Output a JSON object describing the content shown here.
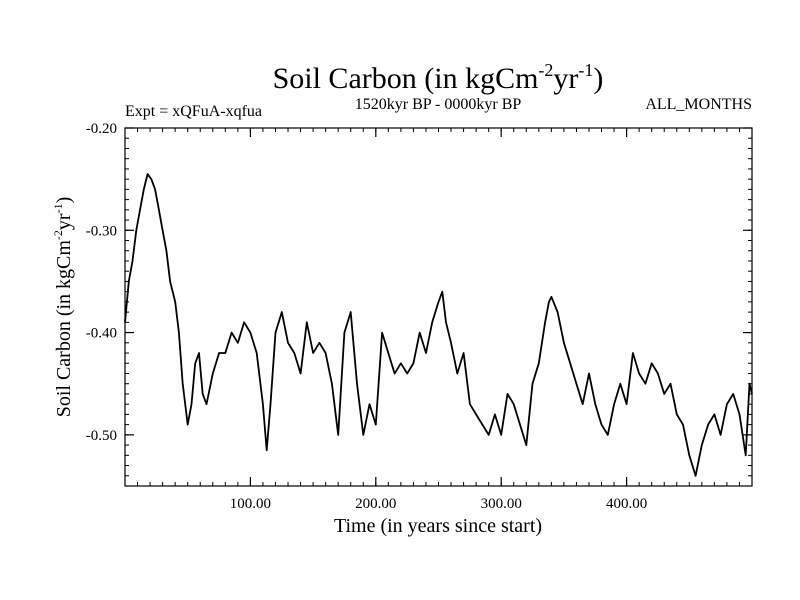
{
  "chart_data": {
    "type": "line",
    "title_main": "Soil Carbon (in kgCm",
    "title_sup1": "-2",
    "title_mid": "yr",
    "title_sup2": "-1",
    "title_close": ")",
    "subtitle_left": "Expt = xQFuA-xqfua",
    "subtitle_center": "1520kyr BP - 0000kyr BP",
    "subtitle_right": "ALL_MONTHS",
    "xlabel": "Time (in years since start)",
    "ylabel_main": "Soil Carbon (in kgCm",
    "ylabel_sup1": "-2",
    "ylabel_mid": "yr",
    "ylabel_sup2": "-1",
    "ylabel_close": ")",
    "xlim": [
      0,
      500
    ],
    "ylim": [
      -0.55,
      -0.2
    ],
    "xticks": [
      {
        "value": 100,
        "label": "100.00"
      },
      {
        "value": 200,
        "label": "200.00"
      },
      {
        "value": 300,
        "label": "300.00"
      },
      {
        "value": 400,
        "label": "400.00"
      }
    ],
    "yticks": [
      {
        "value": -0.2,
        "label": "-0.20"
      },
      {
        "value": -0.3,
        "label": "-0.30"
      },
      {
        "value": -0.4,
        "label": "-0.40"
      },
      {
        "value": -0.5,
        "label": "-0.50"
      }
    ],
    "line_color": "#000000",
    "series": [
      {
        "name": "Soil Carbon",
        "x": [
          0,
          3,
          6,
          9,
          12,
          15,
          18,
          21,
          24,
          27,
          30,
          33,
          36,
          40,
          43,
          46,
          50,
          53,
          56,
          59,
          62,
          65,
          70,
          75,
          80,
          85,
          90,
          95,
          100,
          105,
          110,
          113,
          116,
          120,
          125,
          130,
          135,
          140,
          145,
          150,
          155,
          160,
          165,
          170,
          175,
          180,
          185,
          190,
          195,
          200,
          205,
          210,
          215,
          220,
          225,
          230,
          235,
          240,
          245,
          250,
          253,
          256,
          260,
          265,
          270,
          275,
          280,
          285,
          290,
          295,
          300,
          305,
          310,
          315,
          320,
          325,
          330,
          335,
          338,
          340,
          345,
          350,
          355,
          360,
          365,
          370,
          375,
          380,
          385,
          390,
          395,
          400,
          405,
          410,
          415,
          420,
          425,
          430,
          435,
          440,
          445,
          450,
          455,
          460,
          465,
          470,
          475,
          480,
          485,
          490,
          495,
          498,
          500
        ],
        "y": [
          -0.39,
          -0.35,
          -0.33,
          -0.3,
          -0.28,
          -0.26,
          -0.245,
          -0.25,
          -0.26,
          -0.28,
          -0.3,
          -0.32,
          -0.35,
          -0.37,
          -0.4,
          -0.45,
          -0.49,
          -0.47,
          -0.43,
          -0.42,
          -0.46,
          -0.47,
          -0.44,
          -0.42,
          -0.42,
          -0.4,
          -0.41,
          -0.39,
          -0.4,
          -0.42,
          -0.47,
          -0.515,
          -0.47,
          -0.4,
          -0.38,
          -0.41,
          -0.42,
          -0.44,
          -0.39,
          -0.42,
          -0.41,
          -0.42,
          -0.45,
          -0.5,
          -0.4,
          -0.38,
          -0.45,
          -0.5,
          -0.47,
          -0.49,
          -0.4,
          -0.42,
          -0.44,
          -0.43,
          -0.44,
          -0.43,
          -0.4,
          -0.42,
          -0.39,
          -0.37,
          -0.36,
          -0.39,
          -0.41,
          -0.44,
          -0.42,
          -0.47,
          -0.48,
          -0.49,
          -0.5,
          -0.48,
          -0.5,
          -0.46,
          -0.47,
          -0.49,
          -0.51,
          -0.45,
          -0.43,
          -0.39,
          -0.37,
          -0.365,
          -0.38,
          -0.41,
          -0.43,
          -0.45,
          -0.47,
          -0.44,
          -0.47,
          -0.49,
          -0.5,
          -0.47,
          -0.45,
          -0.47,
          -0.42,
          -0.44,
          -0.45,
          -0.43,
          -0.44,
          -0.46,
          -0.45,
          -0.48,
          -0.49,
          -0.52,
          -0.54,
          -0.51,
          -0.49,
          -0.48,
          -0.5,
          -0.47,
          -0.46,
          -0.48,
          -0.52,
          -0.45,
          -0.46
        ]
      }
    ]
  }
}
